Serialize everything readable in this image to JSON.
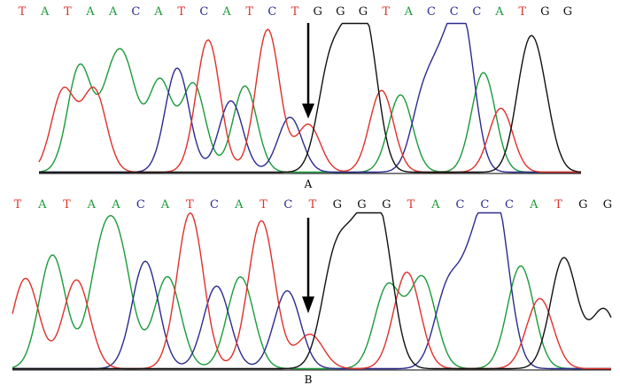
{
  "colors": {
    "A": "#1a9a3a",
    "C": "#2b2b8f",
    "G": "#111111",
    "T": "#e0302a"
  },
  "chart_data": [
    {
      "type": "line",
      "panel_label": "A",
      "bases": [
        "T",
        "A",
        "T",
        "A",
        "A",
        "C",
        "A",
        "T",
        "C",
        "A",
        "T",
        "C",
        "T",
        "G",
        "G",
        "G",
        "T",
        "A",
        "C",
        "C",
        "C",
        "A",
        "T",
        "G",
        "G"
      ],
      "annotation": "arrow pointing at base 13 (T)",
      "traces": {
        "T": [
          [
            0.045,
            0.55
          ],
          [
            0.102,
            0.55
          ],
          [
            0.312,
            0.89
          ],
          [
            0.422,
            0.96
          ],
          [
            0.497,
            0.32
          ],
          [
            0.632,
            0.55
          ],
          [
            0.852,
            0.43
          ]
        ],
        "A": [
          [
            0.075,
            0.71
          ],
          [
            0.132,
            0.48
          ],
          [
            0.162,
            0.56
          ],
          [
            0.223,
            0.61
          ],
          [
            0.285,
            0.59
          ],
          [
            0.38,
            0.58
          ],
          [
            0.667,
            0.52
          ],
          [
            0.82,
            0.67
          ]
        ],
        "C": [
          [
            0.255,
            0.7
          ],
          [
            0.354,
            0.48
          ],
          [
            0.463,
            0.37
          ],
          [
            0.708,
            0.46
          ],
          [
            0.745,
            0.58
          ],
          [
            0.782,
            0.96
          ]
        ],
        "G": [
          [
            0.535,
            0.64
          ],
          [
            0.572,
            0.66
          ],
          [
            0.605,
            0.84
          ],
          [
            0.9,
            0.66
          ],
          [
            0.926,
            0.42
          ]
        ]
      }
    },
    {
      "type": "line",
      "panel_label": "B",
      "bases": [
        "T",
        "A",
        "T",
        "A",
        "A",
        "C",
        "A",
        "T",
        "C",
        "A",
        "T",
        "C",
        "T",
        "G",
        "G",
        "G",
        "T",
        "A",
        "C",
        "C",
        "C",
        "A",
        "T",
        "G",
        "G"
      ],
      "annotation": "arrow pointing at base 13 (T)",
      "traces": {
        "T": [
          [
            0.022,
            0.58
          ],
          [
            0.107,
            0.57
          ],
          [
            0.297,
            1.0
          ],
          [
            0.416,
            0.95
          ],
          [
            0.497,
            0.22
          ],
          [
            0.659,
            0.62
          ],
          [
            0.881,
            0.45
          ]
        ],
        "A": [
          [
            0.067,
            0.73
          ],
          [
            0.148,
            0.64
          ],
          [
            0.18,
            0.64
          ],
          [
            0.259,
            0.59
          ],
          [
            0.381,
            0.59
          ],
          [
            0.627,
            0.53
          ],
          [
            0.685,
            0.58
          ],
          [
            0.849,
            0.66
          ]
        ],
        "C": [
          [
            0.222,
            0.69
          ],
          [
            0.341,
            0.53
          ],
          [
            0.459,
            0.5
          ],
          [
            0.727,
            0.5
          ],
          [
            0.771,
            0.62
          ],
          [
            0.808,
            1.0
          ]
        ],
        "G": [
          [
            0.538,
            0.66
          ],
          [
            0.577,
            0.66
          ],
          [
            0.614,
            0.89
          ],
          [
            0.921,
            0.71
          ],
          [
            0.988,
            0.38
          ]
        ]
      }
    }
  ]
}
